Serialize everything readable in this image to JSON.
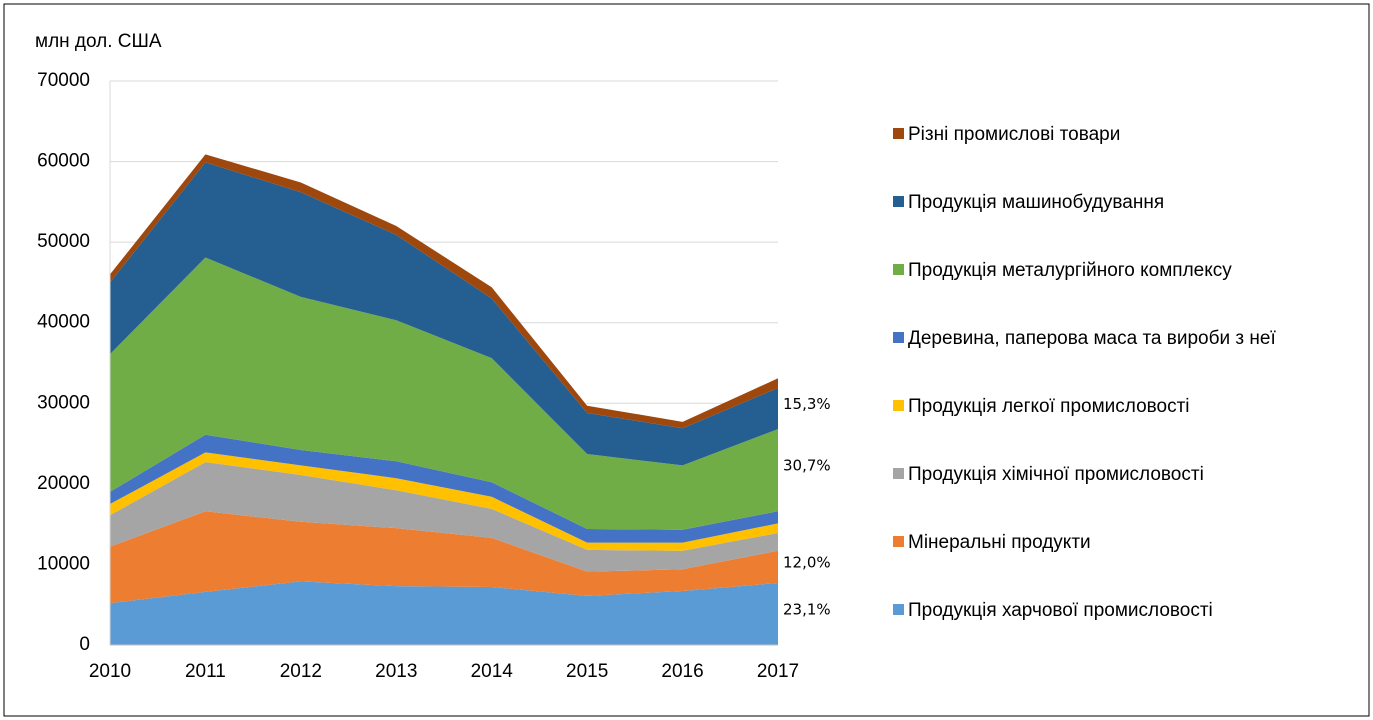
{
  "chart_data": {
    "type": "stacked_area",
    "y_axis_label": "млн  дол. США",
    "x": [
      "2010",
      "2011",
      "2012",
      "2013",
      "2014",
      "2015",
      "2016",
      "2017"
    ],
    "ylim": [
      0,
      70000
    ],
    "yticks": [
      0,
      10000,
      20000,
      30000,
      40000,
      50000,
      60000,
      70000
    ],
    "grid": true,
    "series": [
      {
        "name": "Продукція харчової промисловості",
        "color": "#5b9bd5",
        "values": [
          5200,
          6600,
          7900,
          7300,
          7200,
          6100,
          6700,
          7700
        ]
      },
      {
        "name": "Мінеральні продукти",
        "color": "#ed7d31",
        "values": [
          7000,
          10000,
          7400,
          7200,
          6100,
          3000,
          2700,
          4000
        ]
      },
      {
        "name": "Продукція хімічної промисловості",
        "color": "#a5a5a5",
        "values": [
          3900,
          6100,
          5800,
          4700,
          3600,
          2700,
          2300,
          2200
        ]
      },
      {
        "name": "Продукція легкої промисловості",
        "color": "#ffc000",
        "values": [
          1400,
          1200,
          1200,
          1500,
          1500,
          900,
          1000,
          1200
        ]
      },
      {
        "name": "Деревина, паперова маса та вироби з неї",
        "color": "#4472c4",
        "values": [
          1500,
          2200,
          1900,
          2100,
          1800,
          1700,
          1600,
          1500
        ]
      },
      {
        "name": "Продукція металургійного комплексу",
        "color": "#70ad47",
        "values": [
          17100,
          22000,
          19000,
          17500,
          15400,
          9300,
          8000,
          10200
        ]
      },
      {
        "name": "Продукція машинобудування",
        "color": "#255e91",
        "values": [
          8900,
          11800,
          13000,
          10600,
          7400,
          5100,
          4600,
          5100
        ]
      },
      {
        "name": "Різні промислові товари",
        "color": "#9e480e",
        "values": [
          1000,
          1000,
          1200,
          1100,
          1400,
          900,
          800,
          1200
        ]
      }
    ],
    "annotations": [
      "23,1%",
      "12,0%",
      "30,7%",
      "15,3%"
    ]
  }
}
